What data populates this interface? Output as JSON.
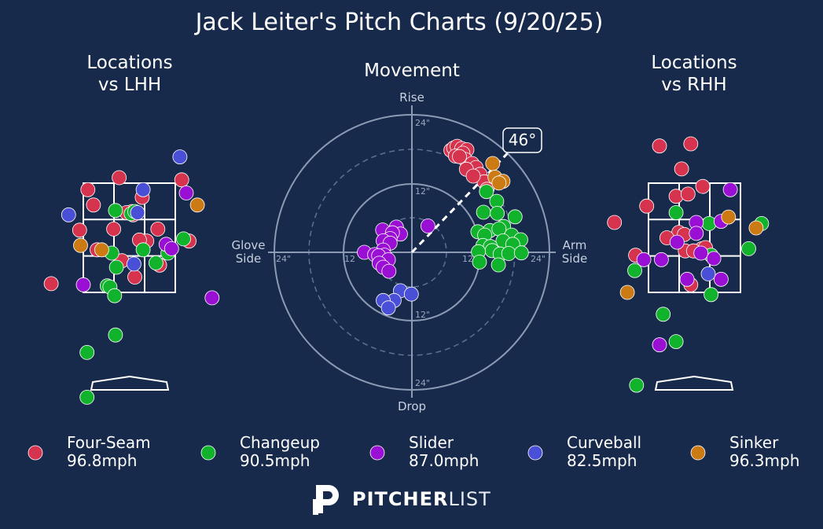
{
  "title": "Jack Leiter's Pitch Charts (9/20/25)",
  "panels": {
    "lhh_title_line1": "Locations",
    "lhh_title_line2": "vs LHH",
    "rhh_title_line1": "Locations",
    "rhh_title_line2": "vs RHH",
    "movement_title": "Movement"
  },
  "movement_axes": {
    "top": "Rise",
    "bottom": "Drop",
    "left_line1": "Glove",
    "left_line2": "Side",
    "right_line1": "Arm",
    "right_line2": "Side",
    "ring_labels": [
      "24\"",
      "12\"",
      "12",
      "24\"",
      "12",
      "12\"",
      "24\"",
      "24\""
    ],
    "arm_angle_label": "46°",
    "arm_angle_deg": 46
  },
  "colors": {
    "background": "#172a4c",
    "four_seam": "#d6334e",
    "changeup": "#10b32b",
    "slider": "#9a0fd4",
    "curveball": "#4a4fd8",
    "sinker": "#cc7a14"
  },
  "legend": [
    {
      "name": "Four-Seam",
      "speed": "96.8mph",
      "key": "four_seam"
    },
    {
      "name": "Changeup",
      "speed": "90.5mph",
      "key": "changeup"
    },
    {
      "name": "Slider",
      "speed": "87.0mph",
      "key": "slider"
    },
    {
      "name": "Curveball",
      "speed": "82.5mph",
      "key": "curveball"
    },
    {
      "name": "Sinker",
      "speed": "96.3mph",
      "key": "sinker"
    }
  ],
  "brand": {
    "bold": "PITCHER",
    "light": "LIST"
  },
  "chart_data": [
    {
      "type": "scatter",
      "title": "Locations vs LHH",
      "note": "Pitch locations as fraction of zone: x 0=left edge,1=right edge; y 0=bottom,1=top of strike zone",
      "xlim": [
        -0.9,
        1.9
      ],
      "ylim": [
        -1.05,
        1.45
      ],
      "series": [
        {
          "name": "Four-Seam",
          "key": "four_seam",
          "points": [
            [
              0.05,
              0.94
            ],
            [
              0.39,
              1.05
            ],
            [
              0.11,
              0.8
            ],
            [
              0.64,
              0.87
            ],
            [
              1.07,
              1.03
            ],
            [
              0.53,
              0.74
            ],
            [
              0.47,
              0.73
            ],
            [
              0.54,
              0.71
            ],
            [
              -0.04,
              0.57
            ],
            [
              0.33,
              0.58
            ],
            [
              0.81,
              0.58
            ],
            [
              0.69,
              0.47
            ],
            [
              0.61,
              0.48
            ],
            [
              1.15,
              0.47
            ],
            [
              0.15,
              0.39
            ],
            [
              0.42,
              0.29
            ],
            [
              0.83,
              0.25
            ],
            [
              0.56,
              0.14
            ],
            [
              -0.35,
              0.08
            ]
          ]
        },
        {
          "name": "Changeup",
          "key": "changeup",
          "points": [
            [
              0.35,
              0.75
            ],
            [
              0.52,
              0.72
            ],
            [
              0.56,
              0.74
            ],
            [
              1.09,
              0.49
            ],
            [
              0.65,
              0.39
            ],
            [
              0.31,
              0.36
            ],
            [
              0.92,
              0.36
            ],
            [
              0.79,
              0.27
            ],
            [
              0.36,
              0.23
            ],
            [
              0.26,
              0.06
            ],
            [
              0.29,
              0.05
            ],
            [
              0.34,
              -0.03
            ],
            [
              0.35,
              -0.39
            ],
            [
              0.04,
              -0.55
            ],
            [
              0.04,
              -0.96
            ]
          ]
        },
        {
          "name": "Slider",
          "key": "slider",
          "points": [
            [
              1.12,
              0.91
            ],
            [
              0.9,
              0.44
            ],
            [
              0.96,
              0.4
            ],
            [
              0.0,
              0.07
            ],
            [
              1.4,
              -0.05
            ],
            [
              1.79,
              0.98
            ]
          ]
        },
        {
          "name": "Curveball",
          "key": "curveball",
          "points": [
            [
              1.05,
              1.24
            ],
            [
              0.65,
              0.94
            ],
            [
              0.59,
              0.73
            ],
            [
              -0.16,
              0.71
            ],
            [
              0.55,
              0.26
            ]
          ]
        },
        {
          "name": "Sinker",
          "key": "sinker",
          "points": [
            [
              1.24,
              0.8
            ],
            [
              -0.03,
              0.43
            ],
            [
              0.2,
              0.39
            ]
          ]
        }
      ]
    },
    {
      "type": "scatter",
      "title": "Movement",
      "note": "Induced break in inches; x positive = arm side, y positive = rise",
      "xlim": [
        -24,
        24
      ],
      "ylim": [
        -24,
        24
      ],
      "series": [
        {
          "name": "Four-Seam",
          "key": "four_seam",
          "points": [
            [
              6.8,
              17.8
            ],
            [
              7.3,
              18.2
            ],
            [
              7.9,
              18.5
            ],
            [
              8.7,
              18.1
            ],
            [
              9.6,
              17.9
            ],
            [
              7.6,
              16.8
            ],
            [
              8.9,
              17.3
            ],
            [
              9.3,
              16.2
            ],
            [
              8.3,
              16.7
            ],
            [
              10.5,
              15.5
            ],
            [
              11.2,
              14.8
            ],
            [
              11.9,
              13.6
            ],
            [
              12.6,
              12.3
            ],
            [
              13.1,
              11.0
            ],
            [
              9.5,
              14.5
            ],
            [
              10.7,
              13.3
            ]
          ]
        },
        {
          "name": "Changeup",
          "key": "changeup",
          "points": [
            [
              13.0,
              10.6
            ],
            [
              14.8,
              8.9
            ],
            [
              12.5,
              7.0
            ],
            [
              14.9,
              6.8
            ],
            [
              18.0,
              6.2
            ],
            [
              16.0,
              4.5
            ],
            [
              13.6,
              3.8
            ],
            [
              15.2,
              4.1
            ],
            [
              11.5,
              3.6
            ],
            [
              12.7,
              3.0
            ],
            [
              17.4,
              3.0
            ],
            [
              19.0,
              2.2
            ],
            [
              15.9,
              2.0
            ],
            [
              17.6,
              1.4
            ],
            [
              12.4,
              1.2
            ],
            [
              13.7,
              1.0
            ],
            [
              14.0,
              0.3
            ],
            [
              11.6,
              0.1
            ],
            [
              15.4,
              -0.3
            ],
            [
              16.9,
              -0.2
            ],
            [
              11.8,
              -1.7
            ],
            [
              15.1,
              -2.2
            ],
            [
              19.1,
              -0.1
            ]
          ]
        },
        {
          "name": "Slider",
          "key": "slider",
          "points": [
            [
              2.8,
              4.6
            ],
            [
              -2.7,
              4.4
            ],
            [
              -5.1,
              3.9
            ],
            [
              -2.0,
              3.2
            ],
            [
              -3.4,
              3.4
            ],
            [
              -3.8,
              2.4
            ],
            [
              -5.0,
              2.0
            ],
            [
              -3.8,
              1.6
            ],
            [
              -5.0,
              0.4
            ],
            [
              -4.8,
              -0.5
            ],
            [
              -8.3,
              0.0
            ],
            [
              -6.5,
              -0.4
            ],
            [
              -5.8,
              -0.6
            ],
            [
              -4.1,
              -1.3
            ],
            [
              -5.7,
              -1.9
            ],
            [
              -5.0,
              -2.6
            ],
            [
              -4.0,
              -3.3
            ]
          ]
        },
        {
          "name": "Curveball",
          "key": "curveball",
          "points": [
            [
              -2.0,
              -6.7
            ],
            [
              -0.1,
              -7.3
            ],
            [
              -3.1,
              -8.4
            ],
            [
              -5.0,
              -8.4
            ],
            [
              -4.1,
              -9.7
            ]
          ]
        },
        {
          "name": "Sinker",
          "key": "sinker",
          "points": [
            [
              14.1,
              15.5
            ],
            [
              14.5,
              13.1
            ],
            [
              15.9,
              12.4
            ],
            [
              15.2,
              12.1
            ]
          ]
        }
      ]
    },
    {
      "type": "scatter",
      "title": "Locations vs RHH",
      "note": "Pitch locations as fraction of zone: x 0=left edge,1=right edge; y 0=bottom,1=top of strike zone",
      "xlim": [
        -0.9,
        1.9
      ],
      "ylim": [
        -1.05,
        1.45
      ],
      "series": [
        {
          "name": "Four-Seam",
          "key": "four_seam",
          "points": [
            [
              0.12,
              1.34
            ],
            [
              0.46,
              1.36
            ],
            [
              0.36,
              1.13
            ],
            [
              0.59,
              0.97
            ],
            [
              0.3,
              0.88
            ],
            [
              0.43,
              0.9
            ],
            [
              -0.02,
              0.79
            ],
            [
              -0.37,
              0.64
            ],
            [
              0.33,
              0.55
            ],
            [
              0.2,
              0.5
            ],
            [
              0.39,
              0.53
            ],
            [
              0.58,
              0.4
            ],
            [
              0.4,
              0.38
            ],
            [
              0.49,
              0.38
            ],
            [
              0.62,
              0.41
            ],
            [
              -0.14,
              0.34
            ],
            [
              0.46,
              0.07
            ]
          ]
        },
        {
          "name": "Changeup",
          "key": "changeup",
          "points": [
            [
              0.3,
              0.73
            ],
            [
              0.66,
              0.63
            ],
            [
              -0.15,
              0.2
            ],
            [
              0.68,
              0.34
            ],
            [
              0.68,
              -0.02
            ],
            [
              1.09,
              0.4
            ],
            [
              1.23,
              0.63
            ],
            [
              0.16,
              -0.2
            ],
            [
              0.3,
              -0.45
            ],
            [
              -0.13,
              -0.85
            ]
          ]
        },
        {
          "name": "Slider",
          "key": "slider",
          "points": [
            [
              0.89,
              0.94
            ],
            [
              0.52,
              0.64
            ],
            [
              0.79,
              0.65
            ],
            [
              0.52,
              0.54
            ],
            [
              0.31,
              0.46
            ],
            [
              0.57,
              0.36
            ],
            [
              0.71,
              0.31
            ],
            [
              -0.05,
              0.3
            ],
            [
              0.14,
              0.3
            ],
            [
              0.42,
              0.12
            ],
            [
              0.79,
              0.12
            ],
            [
              0.12,
              -0.48
            ]
          ]
        },
        {
          "name": "Curveball",
          "key": "curveball",
          "points": [
            [
              0.65,
              0.17
            ]
          ]
        },
        {
          "name": "Sinker",
          "key": "sinker",
          "points": [
            [
              0.87,
              0.69
            ],
            [
              1.17,
              0.59
            ],
            [
              -0.23,
              0.0
            ]
          ]
        }
      ]
    }
  ]
}
